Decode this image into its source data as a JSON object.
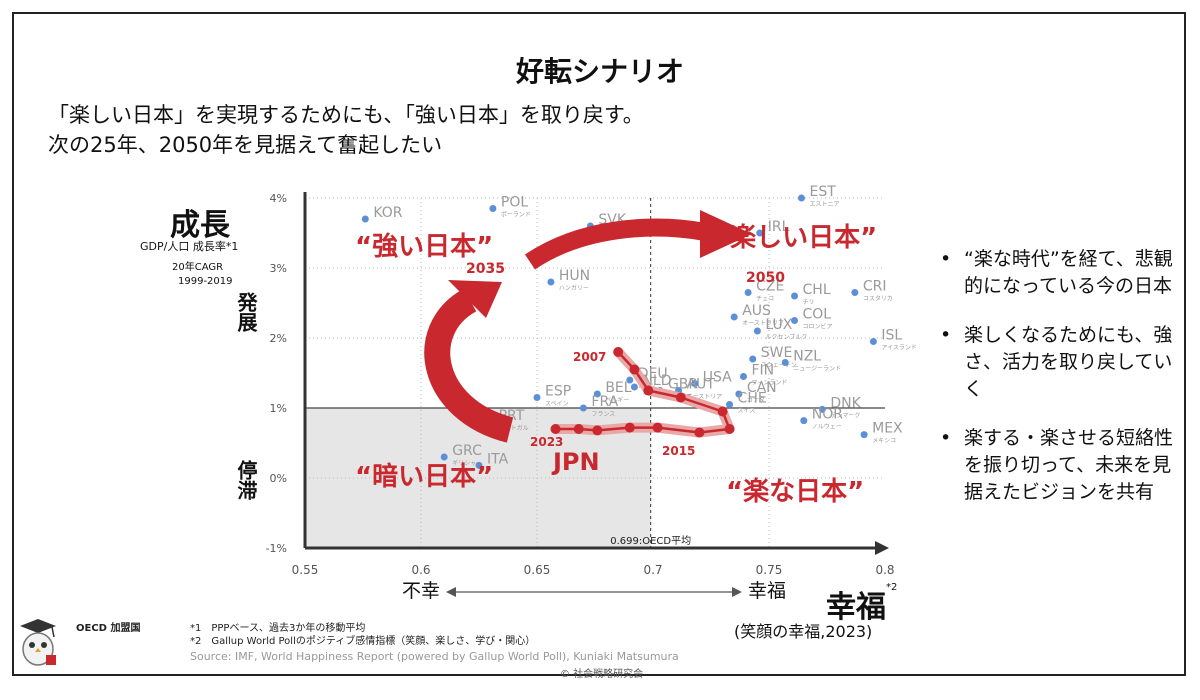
{
  "title": "好転シナリオ",
  "lead_line1": "「楽しい日本」を実現するためにも、「強い日本」を取り戻す。",
  "lead_line2": "次の25年、2050年を見据えて奮起したい",
  "y_axis": {
    "title": "成長",
    "sub1": "GDP/人口 成長率*1",
    "sub2": "20年CAGR",
    "sub3": "1999-2019",
    "upper_label": "発展",
    "lower_label": "停滞"
  },
  "x_axis": {
    "left_label": "不幸",
    "right_label": "幸福",
    "title": "幸福",
    "title_note": "*2",
    "sub": "(笑顔の幸福,2023)",
    "oecd_avg_label": "0.699:OECD平均"
  },
  "quadrant_labels": {
    "strong": "“強い日本”",
    "fun": "“楽しい日本”",
    "dark": "“暗い日本”",
    "easy": "“楽な日本”"
  },
  "year_labels": [
    "2035",
    "2050",
    "2007",
    "2023",
    "2015"
  ],
  "jpn_label": "JPN",
  "bullets": [
    "“楽な時代”を経て、悲観的になっている今の日本",
    "楽しくなるためにも、強さ、活力を取り戻していく",
    "楽する・楽させる短絡性を振り切って、未来を見据えたビジョンを共有"
  ],
  "footer": {
    "oecd": "OECD 加盟国",
    "note1": "*1　PPPベース、過去3か年の移動平均",
    "note2": "*2　Gallup World Pollのポジティブ感情指標（笑顔、楽しさ、学び・関心）",
    "source": "Source: IMF, World Happiness Report (powered by Gallup World Poll), Kuniaki Matsumura",
    "copyright": "© 社会戦略研究会"
  },
  "colors": {
    "accent": "#c8282e",
    "point": "#5b8fd6",
    "country_text": "#9a9a9a",
    "shade": "#e6e6e6"
  },
  "chart_data": {
    "type": "scatter",
    "title": "好転シナリオ",
    "xlabel": "幸福",
    "ylabel": "成長",
    "xlim": [
      0.55,
      0.8
    ],
    "ylim": [
      -1,
      4
    ],
    "x_ticks": [
      "0.55",
      "0.6",
      "0.65",
      "0.7",
      "0.75",
      "0.8"
    ],
    "y_ticks": [
      "-1%",
      "0%",
      "1%",
      "2%",
      "3%",
      "4%"
    ],
    "oecd_average_x": 0.699,
    "reference_y": 1,
    "points": [
      {
        "label": "KOR",
        "x": 0.576,
        "y": 3.7
      },
      {
        "label": "POL",
        "sub": "ポーランド",
        "x": 0.631,
        "y": 3.85
      },
      {
        "label": "SVK",
        "x": 0.673,
        "y": 3.6
      },
      {
        "label": "HUN",
        "sub": "ハンガリー",
        "x": 0.656,
        "y": 2.8
      },
      {
        "label": "EST",
        "sub": "エストニア",
        "x": 0.764,
        "y": 4.0
      },
      {
        "label": "IRL",
        "x": 0.746,
        "y": 3.5
      },
      {
        "label": "CZE",
        "sub": "チェコ",
        "x": 0.741,
        "y": 2.65
      },
      {
        "label": "CHL",
        "sub": "チリ",
        "x": 0.761,
        "y": 2.6
      },
      {
        "label": "CRI",
        "sub": "コスタリカ",
        "x": 0.787,
        "y": 2.65
      },
      {
        "label": "COL",
        "sub": "コロンビア",
        "x": 0.761,
        "y": 2.25
      },
      {
        "label": "ISL",
        "sub": "アイスランド",
        "x": 0.795,
        "y": 1.95
      },
      {
        "label": "LUX",
        "sub": "ルクセンブルク",
        "x": 0.745,
        "y": 2.1
      },
      {
        "label": "AUS",
        "sub": "オーストラリア",
        "x": 0.735,
        "y": 2.3
      },
      {
        "label": "SWE",
        "sub": "スウェーデン",
        "x": 0.743,
        "y": 1.7
      },
      {
        "label": "NZL",
        "sub": "ニュージーランド",
        "x": 0.757,
        "y": 1.65
      },
      {
        "label": "FIN",
        "sub": "フィンランド",
        "x": 0.739,
        "y": 1.45
      },
      {
        "label": "CAN",
        "sub": "カナダ",
        "x": 0.737,
        "y": 1.2
      },
      {
        "label": "CHE",
        "sub": "スイス",
        "x": 0.733,
        "y": 1.05
      },
      {
        "label": "DNK",
        "sub": "デンマーク",
        "x": 0.773,
        "y": 0.98
      },
      {
        "label": "NOR",
        "sub": "ノルウェー",
        "x": 0.765,
        "y": 0.82
      },
      {
        "label": "MEX",
        "sub": "メキシコ",
        "x": 0.791,
        "y": 0.62
      },
      {
        "label": "AUT",
        "sub": "オーストリア",
        "x": 0.711,
        "y": 1.25
      },
      {
        "label": "USA",
        "x": 0.718,
        "y": 1.35
      },
      {
        "label": "GBR",
        "sub": "イギリス",
        "x": 0.703,
        "y": 1.25
      },
      {
        "label": "NLD",
        "sub": "オランダ",
        "x": 0.692,
        "y": 1.3
      },
      {
        "label": "DEU",
        "sub": "ドイツ",
        "x": 0.69,
        "y": 1.4
      },
      {
        "label": "BEL",
        "sub": "ベルギー",
        "x": 0.676,
        "y": 1.2
      },
      {
        "label": "FRA",
        "sub": "フランス",
        "x": 0.67,
        "y": 1.0
      },
      {
        "label": "ESP",
        "sub": "スペイン",
        "x": 0.65,
        "y": 1.15
      },
      {
        "label": "PRT",
        "sub": "ポルトガル",
        "x": 0.63,
        "y": 0.8
      },
      {
        "label": "GRC",
        "sub": "ギリシャ",
        "x": 0.61,
        "y": 0.3
      },
      {
        "label": "ITA",
        "x": 0.625,
        "y": 0.18
      }
    ],
    "jpn_trajectory": [
      {
        "year": "2007",
        "x": 0.685,
        "y": 1.8
      },
      {
        "x": 0.692,
        "y": 1.55
      },
      {
        "x": 0.698,
        "y": 1.25
      },
      {
        "x": 0.712,
        "y": 1.15
      },
      {
        "x": 0.73,
        "y": 0.95
      },
      {
        "x": 0.733,
        "y": 0.7
      },
      {
        "year": "2015",
        "x": 0.72,
        "y": 0.65
      },
      {
        "x": 0.702,
        "y": 0.72
      },
      {
        "x": 0.69,
        "y": 0.72
      },
      {
        "x": 0.676,
        "y": 0.68
      },
      {
        "x": 0.668,
        "y": 0.7
      },
      {
        "year": "2023",
        "x": 0.658,
        "y": 0.7
      }
    ]
  }
}
